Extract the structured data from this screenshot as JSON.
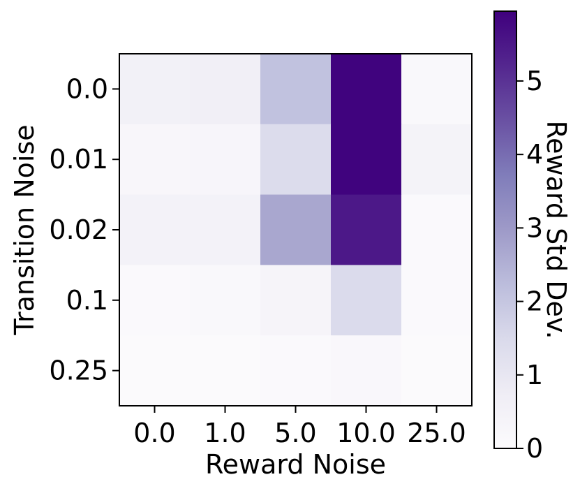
{
  "chart_data": {
    "type": "heatmap",
    "title": "",
    "xlabel": "Reward Noise",
    "ylabel": "Transition Noise",
    "x_categories": [
      "0.0",
      "1.0",
      "5.0",
      "10.0",
      "25.0"
    ],
    "y_categories": [
      "0.0",
      "0.01",
      "0.02",
      "0.1",
      "0.25"
    ],
    "values": [
      [
        0.55,
        0.65,
        2.1,
        5.9,
        0.15
      ],
      [
        0.25,
        0.3,
        1.4,
        5.9,
        0.45
      ],
      [
        0.5,
        0.5,
        2.7,
        5.5,
        0.1
      ],
      [
        0.1,
        0.15,
        0.35,
        1.45,
        0.1
      ],
      [
        0.05,
        0.05,
        0.1,
        0.2,
        0.05
      ]
    ],
    "colorbar": {
      "label": "Reward Std Dev.",
      "range": [
        0,
        5.95
      ],
      "ticks": [
        0,
        1,
        2,
        3,
        4,
        5
      ],
      "tick_labels": [
        "0",
        "1",
        "2",
        "3",
        "4",
        "5"
      ],
      "colormap": "Purples",
      "color_low": "#fcfbfd",
      "color_high": "#3f007d"
    }
  }
}
